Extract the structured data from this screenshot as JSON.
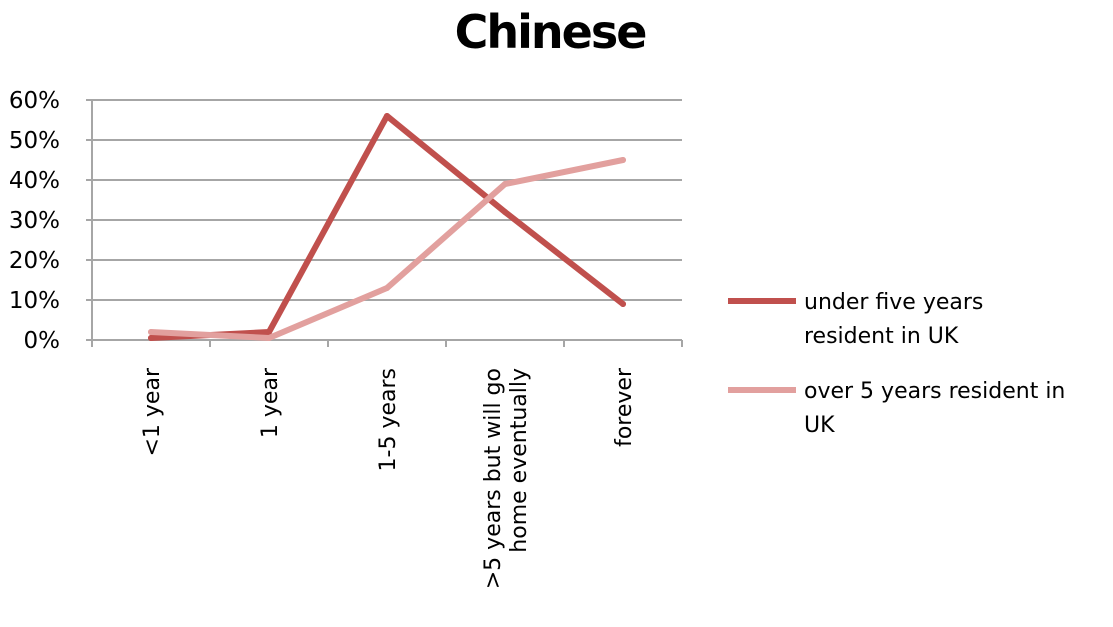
{
  "chart_data": {
    "type": "line",
    "title": "Chinese",
    "categories": [
      [
        "<1 year"
      ],
      [
        "1 year"
      ],
      [
        "1-5 years"
      ],
      [
        ">5 years but will go",
        "home eventually"
      ],
      [
        "forever"
      ]
    ],
    "y_ticks": [
      "0%",
      "10%",
      "20%",
      "30%",
      "40%",
      "50%",
      "60%"
    ],
    "ylim": [
      0,
      60
    ],
    "grid": true,
    "legend_position": "right",
    "series": [
      {
        "name": [
          "under five years",
          "resident in UK"
        ],
        "color": "#c0504d",
        "values": [
          0.5,
          2,
          56,
          32,
          9
        ]
      },
      {
        "name": [
          "over 5 years resident in",
          "UK"
        ],
        "color": "#e2a09e",
        "values": [
          2,
          0.5,
          13,
          39,
          45
        ]
      }
    ]
  }
}
